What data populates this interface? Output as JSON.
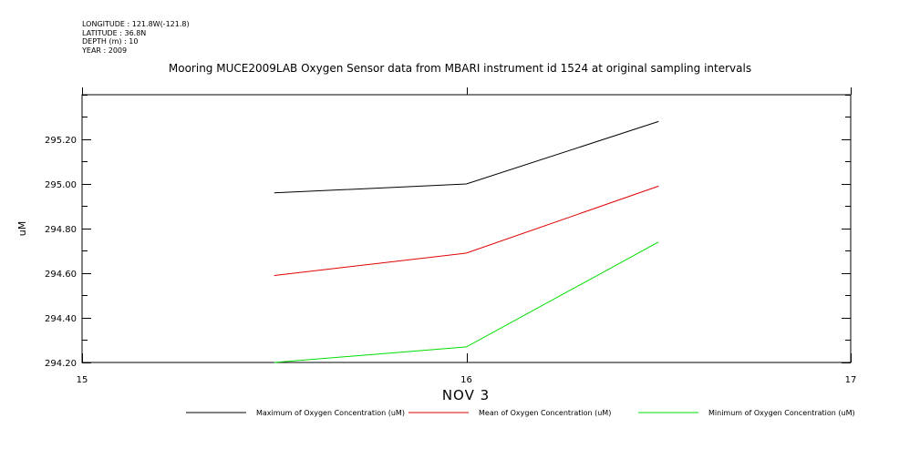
{
  "header": {
    "meta_lines": [
      "LONGITUDE : 121.8W(-121.8)",
      "LATITUDE : 36.8N",
      "DEPTH (m) : 10",
      "YEAR : 2009"
    ],
    "title": "Mooring MUCE2009LAB Oxygen Sensor data from MBARI instrument id 1524 at original sampling intervals"
  },
  "chart_data": {
    "type": "line",
    "title": "Mooring MUCE2009LAB Oxygen Sensor data from MBARI instrument id 1524 at original sampling intervals",
    "xlabel": "NOV  3",
    "ylabel": "uM",
    "x_ticks": [
      "15",
      "16",
      "17"
    ],
    "x_tick_values": [
      15,
      16,
      17
    ],
    "xlim": [
      15,
      17
    ],
    "y_ticks": [
      "294.20",
      "294.40",
      "294.60",
      "294.80",
      "295.00",
      "295.20"
    ],
    "y_tick_values": [
      294.2,
      294.4,
      294.6,
      294.8,
      295.0,
      295.2
    ],
    "ylim": [
      294.2,
      295.4
    ],
    "grid": false,
    "legend_position": "bottom",
    "x": [
      15.5,
      16.0,
      16.5
    ],
    "series": [
      {
        "name": "Maximum of Oxygen Concentration (uM)",
        "color": "#000000",
        "values": [
          294.96,
          295.0,
          295.28
        ]
      },
      {
        "name": "Mean of Oxygen Concentration (uM)",
        "color": "#e00000",
        "values": [
          294.59,
          294.69,
          294.99
        ]
      },
      {
        "name": "Minimum of Oxygen Concentration (uM)",
        "color": "#00dd00",
        "values": [
          294.2,
          294.27,
          294.74
        ]
      }
    ]
  }
}
